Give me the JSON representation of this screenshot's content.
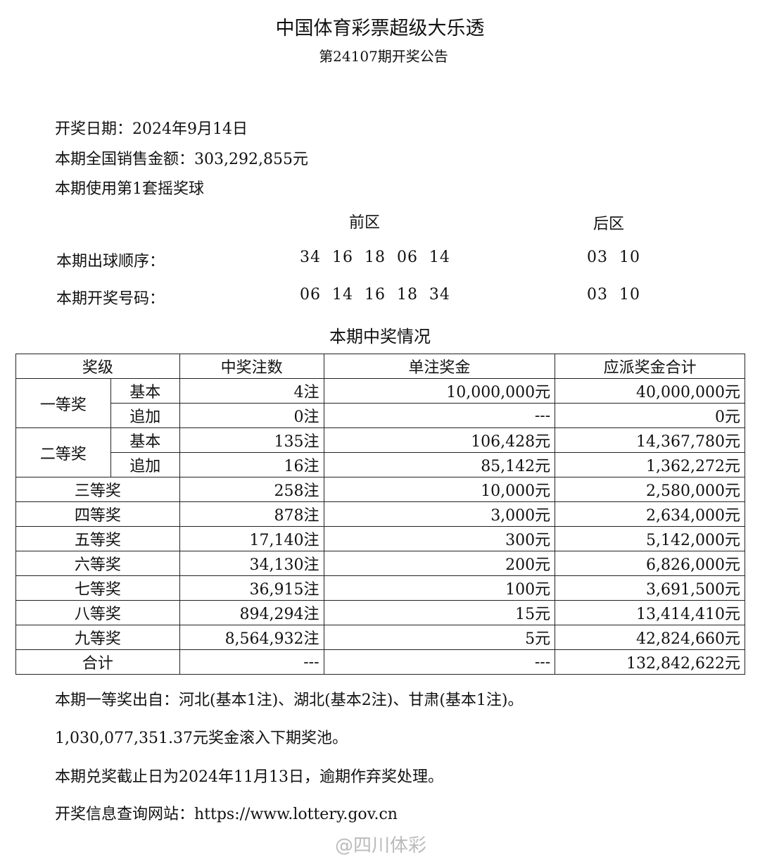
{
  "header": {
    "title": "中国体育彩票超级大乐透",
    "subtitle": "第24107期开奖公告"
  },
  "info": {
    "draw_date": "开奖日期：2024年9月14日",
    "sales": "本期全国销售金额：303,292,855元",
    "ball_set": "本期使用第1套摇奖球"
  },
  "numbers": {
    "front_label": "前区",
    "back_label": "后区",
    "order_label": "本期出球顺序：",
    "order_front": "34  16  18  06  14",
    "order_back": "03  10",
    "result_label": "本期开奖号码：",
    "result_front": "06  14  16  18  34",
    "result_back": "03  10"
  },
  "prize_section_title": "本期中奖情况",
  "table": {
    "headers": [
      "奖级",
      "中奖注数",
      "单注奖金",
      "应派奖金合计"
    ],
    "tiers": [
      {
        "level": "一等奖",
        "rows": [
          {
            "sub": "基本",
            "count": "4注",
            "each": "10,000,000元",
            "total": "40,000,000元"
          },
          {
            "sub": "追加",
            "count": "0注",
            "each": "---",
            "total": "0元"
          }
        ]
      },
      {
        "level": "二等奖",
        "rows": [
          {
            "sub": "基本",
            "count": "135注",
            "each": "106,428元",
            "total": "14,367,780元"
          },
          {
            "sub": "追加",
            "count": "16注",
            "each": "85,142元",
            "total": "1,362,272元"
          }
        ]
      }
    ],
    "rows": [
      {
        "level": "三等奖",
        "count": "258注",
        "each": "10,000元",
        "total": "2,580,000元"
      },
      {
        "level": "四等奖",
        "count": "878注",
        "each": "3,000元",
        "total": "2,634,000元"
      },
      {
        "level": "五等奖",
        "count": "17,140注",
        "each": "300元",
        "total": "5,142,000元"
      },
      {
        "level": "六等奖",
        "count": "34,130注",
        "each": "200元",
        "total": "6,826,000元"
      },
      {
        "level": "七等奖",
        "count": "36,915注",
        "each": "100元",
        "total": "3,691,500元"
      },
      {
        "level": "八等奖",
        "count": "894,294注",
        "each": "15元",
        "total": "13,414,410元"
      },
      {
        "level": "九等奖",
        "count": "8,564,932注",
        "each": "5元",
        "total": "42,824,660元"
      },
      {
        "level": "合计",
        "count": "---",
        "each": "---",
        "total": "132,842,622元"
      }
    ]
  },
  "footer": {
    "winners": "本期一等奖出自：河北(基本1注)、湖北(基本2注)、甘肃(基本1注)。",
    "rollover": "1,030,077,351.37元奖金滚入下期奖池。",
    "deadline": "本期兑奖截止日为2024年11月13日，逾期作弃奖处理。",
    "website": "开奖信息查询网站：https://www.lottery.gov.cn"
  },
  "watermark": "@四川体彩"
}
